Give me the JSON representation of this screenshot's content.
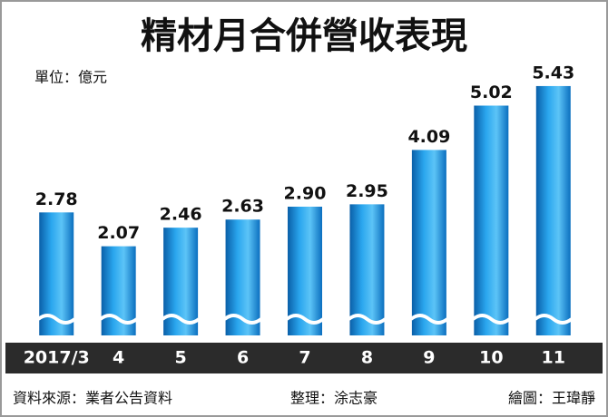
{
  "chart_data": {
    "type": "bar",
    "title": "精材月合併營收表現",
    "unit_label": "單位：億元",
    "categories": [
      "2017/3",
      "4",
      "5",
      "6",
      "7",
      "8",
      "9",
      "10",
      "11"
    ],
    "values": [
      2.78,
      2.07,
      2.46,
      2.63,
      2.9,
      2.95,
      4.09,
      5.02,
      5.43
    ],
    "value_labels": [
      "2.78",
      "2.07",
      "2.46",
      "2.63",
      "2.90",
      "2.95",
      "4.09",
      "5.02",
      "5.43"
    ],
    "color": "#1a8fd8",
    "ylim": [
      0.2,
      5.6
    ],
    "source": "資料來源：業者公告資料",
    "editor": "整理：涂志豪",
    "artist": "繪圖：王瑋靜"
  }
}
